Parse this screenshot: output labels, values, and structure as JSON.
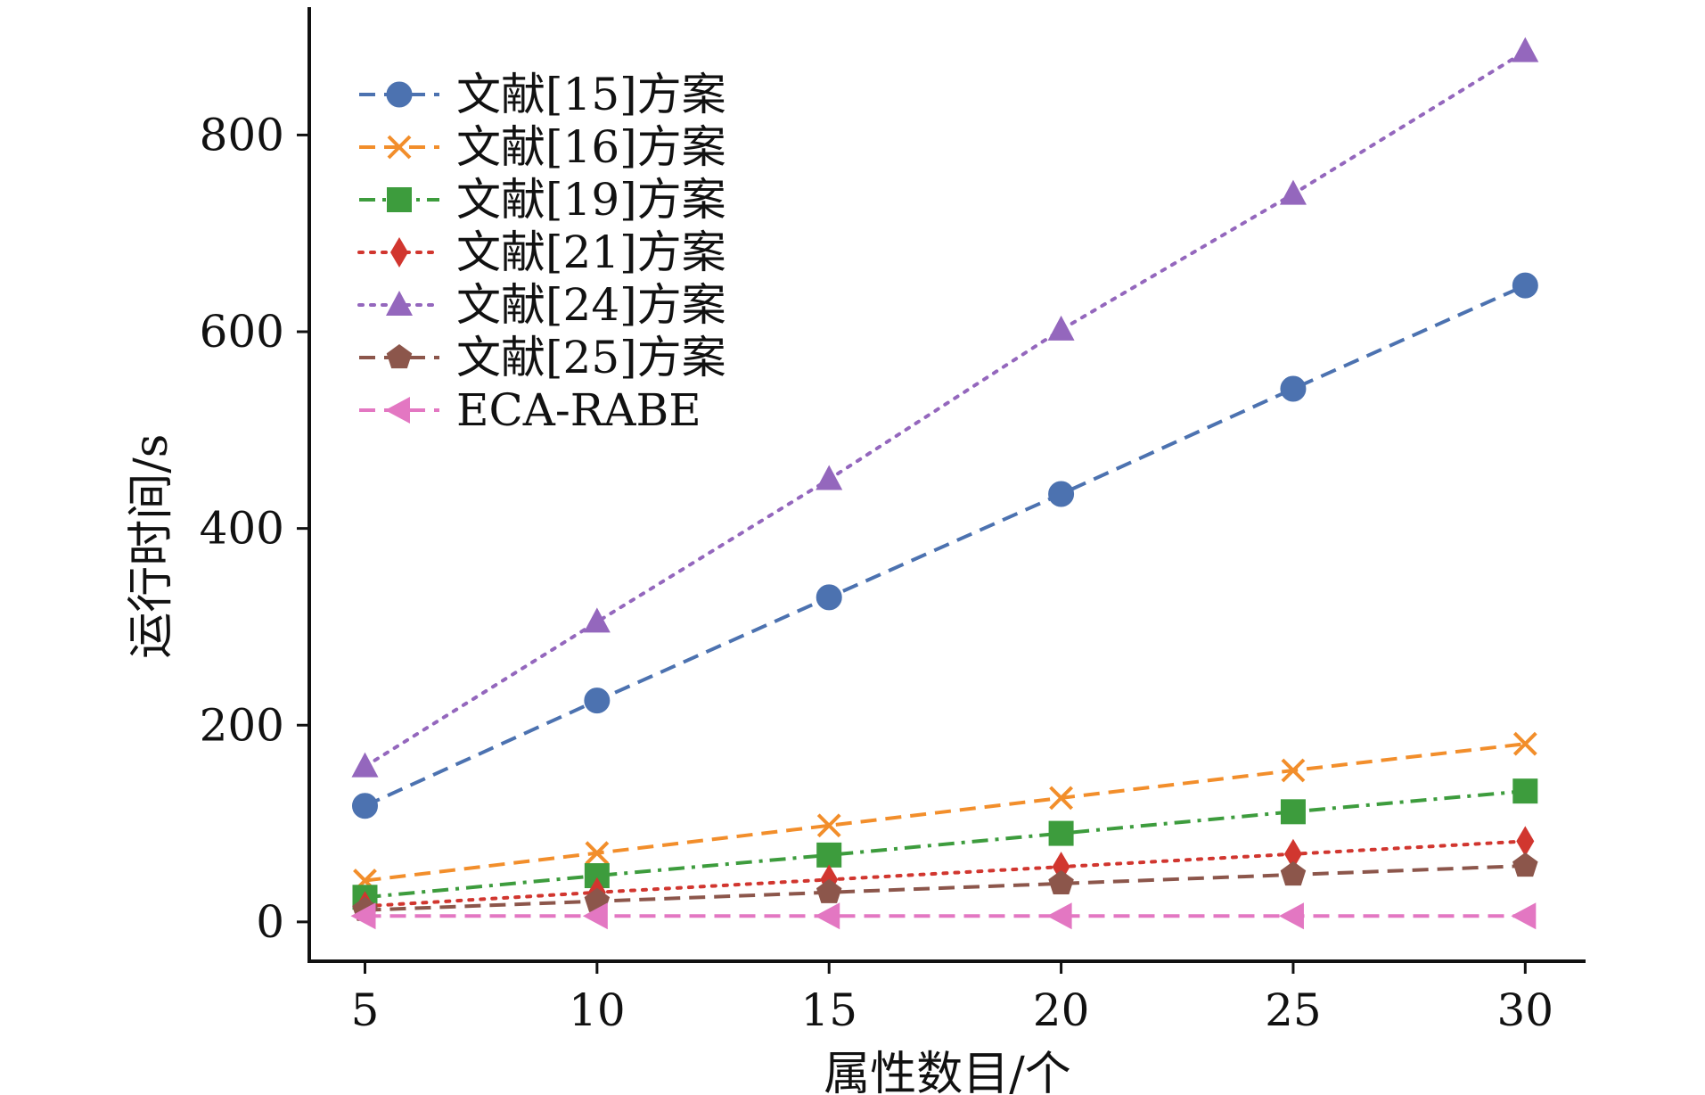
{
  "chart_data": {
    "type": "line",
    "title": "",
    "xlabel": "属性数目/个",
    "ylabel": "运行时间/s",
    "x": [
      5,
      10,
      15,
      20,
      25,
      30
    ],
    "xticks": [
      5,
      10,
      15,
      20,
      25,
      30
    ],
    "yticks": [
      0,
      200,
      400,
      600,
      800
    ],
    "xlim": [
      3.8,
      31.3
    ],
    "ylim": [
      -40,
      930
    ],
    "grid": false,
    "legend_position": "top-left",
    "series": [
      {
        "name": "文献[15]方案",
        "values": [
          118,
          225,
          330,
          435,
          542,
          647
        ],
        "color": "#4c72b0",
        "marker": "circle",
        "dash": "dashed"
      },
      {
        "name": "文献[16]方案",
        "values": [
          42,
          70,
          98,
          126,
          154,
          181
        ],
        "color": "#f28e2b",
        "marker": "x",
        "dash": "dashed"
      },
      {
        "name": "文献[19]方案",
        "values": [
          25,
          47,
          68,
          90,
          112,
          133
        ],
        "color": "#3d9c3d",
        "marker": "square",
        "dash": "dashdot"
      },
      {
        "name": "文献[21]方案",
        "values": [
          16,
          30,
          43,
          56,
          69,
          82
        ],
        "color": "#d1362f",
        "marker": "diamond",
        "dash": "dotted"
      },
      {
        "name": "文献[24]方案",
        "values": [
          158,
          305,
          450,
          602,
          740,
          885
        ],
        "color": "#9467bd",
        "marker": "triangle-up",
        "dash": "dotted"
      },
      {
        "name": "文献[25]方案",
        "values": [
          12,
          21,
          30,
          39,
          48,
          57
        ],
        "color": "#8c564b",
        "marker": "pentagon",
        "dash": "dashed"
      },
      {
        "name": "ECA-RABE",
        "values": [
          6,
          6,
          6,
          6,
          6,
          6
        ],
        "color": "#e377c2",
        "marker": "triangle-left",
        "dash": "dashed"
      }
    ]
  }
}
